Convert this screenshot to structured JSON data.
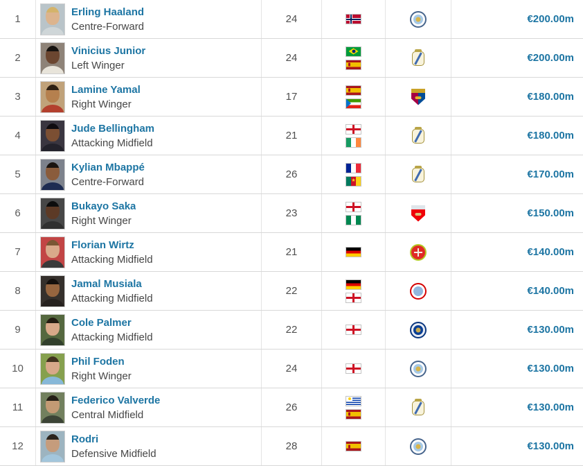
{
  "colors": {
    "link": "#1d75a3",
    "text": "#464646",
    "muted": "#5a5a5a",
    "row_border": "#d8d8d8",
    "col_border": "#e4e4e4"
  },
  "table": {
    "rows": [
      {
        "rank": "1",
        "name": "Erling Haaland",
        "position": "Centre-Forward",
        "age": "24",
        "nationalities": [
          "NOR"
        ],
        "club": "MCI",
        "value": "€200.00m",
        "photo": {
          "bg": "#b9c4c9",
          "hair": "#d4b36a",
          "skin": "#dcb48e",
          "shirt": "#cfd6d8"
        }
      },
      {
        "rank": "2",
        "name": "Vinicius Junior",
        "position": "Left Winger",
        "age": "24",
        "nationalities": [
          "BRA",
          "ESP"
        ],
        "club": "RMA",
        "value": "€200.00m",
        "photo": {
          "bg": "#8e8378",
          "hair": "#171310",
          "skin": "#6b4630",
          "shirt": "#e8e4da"
        }
      },
      {
        "rank": "3",
        "name": "Lamine Yamal",
        "position": "Right Winger",
        "age": "17",
        "nationalities": [
          "ESP",
          "GEQ"
        ],
        "club": "BAR",
        "value": "€180.00m",
        "photo": {
          "bg": "#c0a27a",
          "hair": "#2e2013",
          "skin": "#b5804e",
          "shirt": "#b3402e"
        }
      },
      {
        "rank": "4",
        "name": "Jude Bellingham",
        "position": "Attacking Midfield",
        "age": "21",
        "nationalities": [
          "ENG",
          "IRL"
        ],
        "club": "RMA",
        "value": "€180.00m",
        "photo": {
          "bg": "#3a3640",
          "hair": "#0f0c10",
          "skin": "#7b4f33",
          "shirt": "#23222b"
        }
      },
      {
        "rank": "5",
        "name": "Kylian Mbappé",
        "position": "Centre-Forward",
        "age": "26",
        "nationalities": [
          "FRA",
          "CMR"
        ],
        "club": "RMA",
        "value": "€170.00m",
        "photo": {
          "bg": "#7d828c",
          "hair": "#1a1410",
          "skin": "#8a5c3c",
          "shirt": "#1e2c52"
        }
      },
      {
        "rank": "6",
        "name": "Bukayo Saka",
        "position": "Right Winger",
        "age": "23",
        "nationalities": [
          "ENG",
          "NGA"
        ],
        "club": "ARS",
        "value": "€150.00m",
        "photo": {
          "bg": "#474747",
          "hair": "#0d0d0d",
          "skin": "#5c3a26",
          "shirt": "#303030"
        }
      },
      {
        "rank": "7",
        "name": "Florian Wirtz",
        "position": "Attacking Midfield",
        "age": "21",
        "nationalities": [
          "GER"
        ],
        "club": "LEV",
        "value": "€140.00m",
        "photo": {
          "bg": "#c24545",
          "hair": "#7a5633",
          "skin": "#d9a98a",
          "shirt": "#3a3a3a"
        }
      },
      {
        "rank": "8",
        "name": "Jamal Musiala",
        "position": "Attacking Midfield",
        "age": "22",
        "nationalities": [
          "GER",
          "ENG"
        ],
        "club": "BAY",
        "value": "€140.00m",
        "photo": {
          "bg": "#35302c",
          "hair": "#14100d",
          "skin": "#96653f",
          "shirt": "#26221f"
        }
      },
      {
        "rank": "9",
        "name": "Cole Palmer",
        "position": "Attacking Midfield",
        "age": "22",
        "nationalities": [
          "ENG"
        ],
        "club": "CHE",
        "value": "€130.00m",
        "photo": {
          "bg": "#55683f",
          "hair": "#241c12",
          "skin": "#d8a989",
          "shirt": "#32402c"
        }
      },
      {
        "rank": "10",
        "name": "Phil Foden",
        "position": "Right Winger",
        "age": "24",
        "nationalities": [
          "ENG"
        ],
        "club": "MCI",
        "value": "€130.00m",
        "photo": {
          "bg": "#86a04e",
          "hair": "#41321f",
          "skin": "#d8a88a",
          "shirt": "#87b8d8"
        }
      },
      {
        "rank": "11",
        "name": "Federico Valverde",
        "position": "Central Midfield",
        "age": "26",
        "nationalities": [
          "URU",
          "ESP"
        ],
        "club": "RMA",
        "value": "€130.00m",
        "photo": {
          "bg": "#72805e",
          "hair": "#241e16",
          "skin": "#c39a74",
          "shirt": "#3c4436"
        }
      },
      {
        "rank": "12",
        "name": "Rodri",
        "position": "Defensive Midfield",
        "age": "28",
        "nationalities": [
          "ESP"
        ],
        "club": "MCI",
        "value": "€130.00m",
        "photo": {
          "bg": "#9db4c0",
          "hair": "#2c241d",
          "skin": "#c59c7c",
          "shirt": "#a3c6dc"
        }
      }
    ]
  },
  "flags": {
    "NOR": {
      "name": "norway",
      "type": "nordic",
      "bg": "#BA0C2F",
      "fimbr": "#FFFFFF",
      "cross": "#00205B"
    },
    "BRA": {
      "name": "brazil",
      "type": "brazil",
      "bg": "#009B3A",
      "diamond": "#FEDD00",
      "circle": "#002776"
    },
    "ESP": {
      "name": "spain",
      "type": "h",
      "colors": [
        "#AA151B",
        "#F1BF00",
        "#AA151B"
      ],
      "weights": [
        1,
        2,
        1
      ],
      "emblem": "#AA151B"
    },
    "GEQ": {
      "name": "equatorial-guinea",
      "type": "h",
      "colors": [
        "#3E9A00",
        "#FFFFFF",
        "#E32118"
      ],
      "weights": [
        1,
        1,
        1
      ],
      "triangle": "#0073CE"
    },
    "ENG": {
      "name": "england",
      "type": "cross",
      "bg": "#FFFFFF",
      "cross": "#CE1124"
    },
    "IRL": {
      "name": "ireland",
      "type": "v",
      "colors": [
        "#169B62",
        "#FFFFFF",
        "#FF883E"
      ],
      "weights": [
        1,
        1,
        1
      ]
    },
    "FRA": {
      "name": "france",
      "type": "v",
      "colors": [
        "#002395",
        "#FFFFFF",
        "#ED2939"
      ],
      "weights": [
        1,
        1,
        1
      ]
    },
    "CMR": {
      "name": "cameroon",
      "type": "v",
      "colors": [
        "#007A5E",
        "#CE1126",
        "#FCD116"
      ],
      "weights": [
        1,
        1,
        1
      ],
      "star": "#FCD116"
    },
    "NGA": {
      "name": "nigeria",
      "type": "v",
      "colors": [
        "#008751",
        "#FFFFFF",
        "#008751"
      ],
      "weights": [
        1,
        1,
        1
      ]
    },
    "GER": {
      "name": "germany",
      "type": "h",
      "colors": [
        "#000000",
        "#DD0000",
        "#FFCE00"
      ],
      "weights": [
        1,
        1,
        1
      ]
    },
    "URU": {
      "name": "uruguay",
      "type": "uruguay",
      "stripe1": "#FFFFFF",
      "stripe2": "#0038A8",
      "sun": "#FCD116"
    }
  },
  "clubs": {
    "MCI": {
      "name": "manchester-city",
      "badge": {
        "shape": "circle",
        "ring": "#46648c",
        "mid": "#ffffff",
        "center": "#a6c9e6",
        "dot": "#d8b44a"
      }
    },
    "RMA": {
      "name": "real-madrid",
      "badge": {
        "shape": "crest",
        "bg": "#f8f3dc",
        "border": "#a5923c",
        "band": "#3f6bb0",
        "crown": "#b9a548"
      }
    },
    "BAR": {
      "name": "fc-barcelona",
      "badge": {
        "shape": "shield",
        "left": "#a50044",
        "right": "#004d98",
        "band": "#c9a227",
        "dot": "#e3b52a"
      }
    },
    "ARS": {
      "name": "arsenal-fc",
      "badge": {
        "shape": "shield",
        "left": "#ef0107",
        "right": "#ef0107",
        "band": "#dfe5ea",
        "dot": "#d9c27a"
      }
    },
    "LEV": {
      "name": "bayer-leverkusen",
      "badge": {
        "shape": "circle",
        "ring": "#b5c922",
        "mid": "#e02a26",
        "center": "#e02a26",
        "cross": "#f2efe4"
      }
    },
    "BAY": {
      "name": "bayern-munich",
      "badge": {
        "shape": "circle",
        "ring": "#d40000",
        "mid": "#ffffff",
        "center": "#92b7dd"
      }
    },
    "CHE": {
      "name": "chelsea-fc",
      "badge": {
        "shape": "circle",
        "ring": "#08357e",
        "mid": "#e8ecf4",
        "center": "#0a3f94",
        "dot": "#c9a94f"
      }
    }
  }
}
